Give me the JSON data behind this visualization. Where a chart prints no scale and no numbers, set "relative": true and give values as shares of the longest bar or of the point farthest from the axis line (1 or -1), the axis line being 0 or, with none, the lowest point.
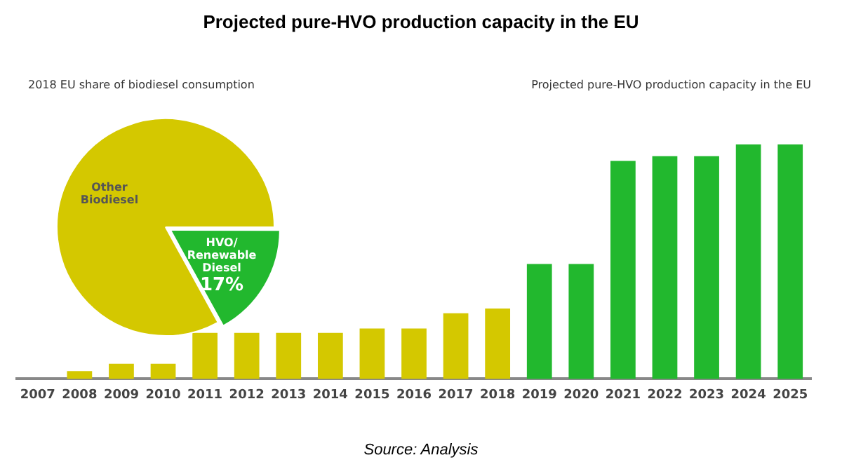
{
  "chart_data": [
    {
      "type": "pie",
      "title": "2018 EU share of biodiesel consumption",
      "categories": [
        "HVO/ Renewable Diesel",
        "Other Biodiesel"
      ],
      "values": [
        17,
        83
      ],
      "colors": [
        "#22b82e",
        "#d4c800"
      ],
      "value_labels": [
        "17%",
        null
      ],
      "legend": false
    },
    {
      "type": "bar",
      "title": "Projected pure-HVO production capacity in the EU",
      "subtitle": "Projected pure-HVO production capacity in the EU",
      "annotations": [
        "Source: Analysis"
      ],
      "relative": true,
      "legend": false,
      "grid": false,
      "categories": [
        "2007",
        "2008",
        "2009",
        "2010",
        "2011",
        "2012",
        "2013",
        "2014",
        "2015",
        "2016",
        "2017",
        "2018",
        "2019",
        "2020",
        "2021",
        "2022",
        "2023",
        "2024",
        "2025"
      ],
      "values": [
        0,
        0.033,
        0.065,
        0.065,
        0.196,
        0.196,
        0.196,
        0.196,
        0.215,
        0.215,
        0.28,
        0.3,
        0.49,
        0.49,
        0.93,
        0.95,
        0.95,
        1,
        1
      ],
      "colors": [
        "#d4c800",
        "#d4c800",
        "#d4c800",
        "#d4c800",
        "#d4c800",
        "#d4c800",
        "#d4c800",
        "#d4c800",
        "#d4c800",
        "#d4c800",
        "#d4c800",
        "#d4c800",
        "#22b82e",
        "#22b82e",
        "#22b82e",
        "#22b82e",
        "#22b82e",
        "#22b82e",
        "#22b82e"
      ]
    }
  ]
}
